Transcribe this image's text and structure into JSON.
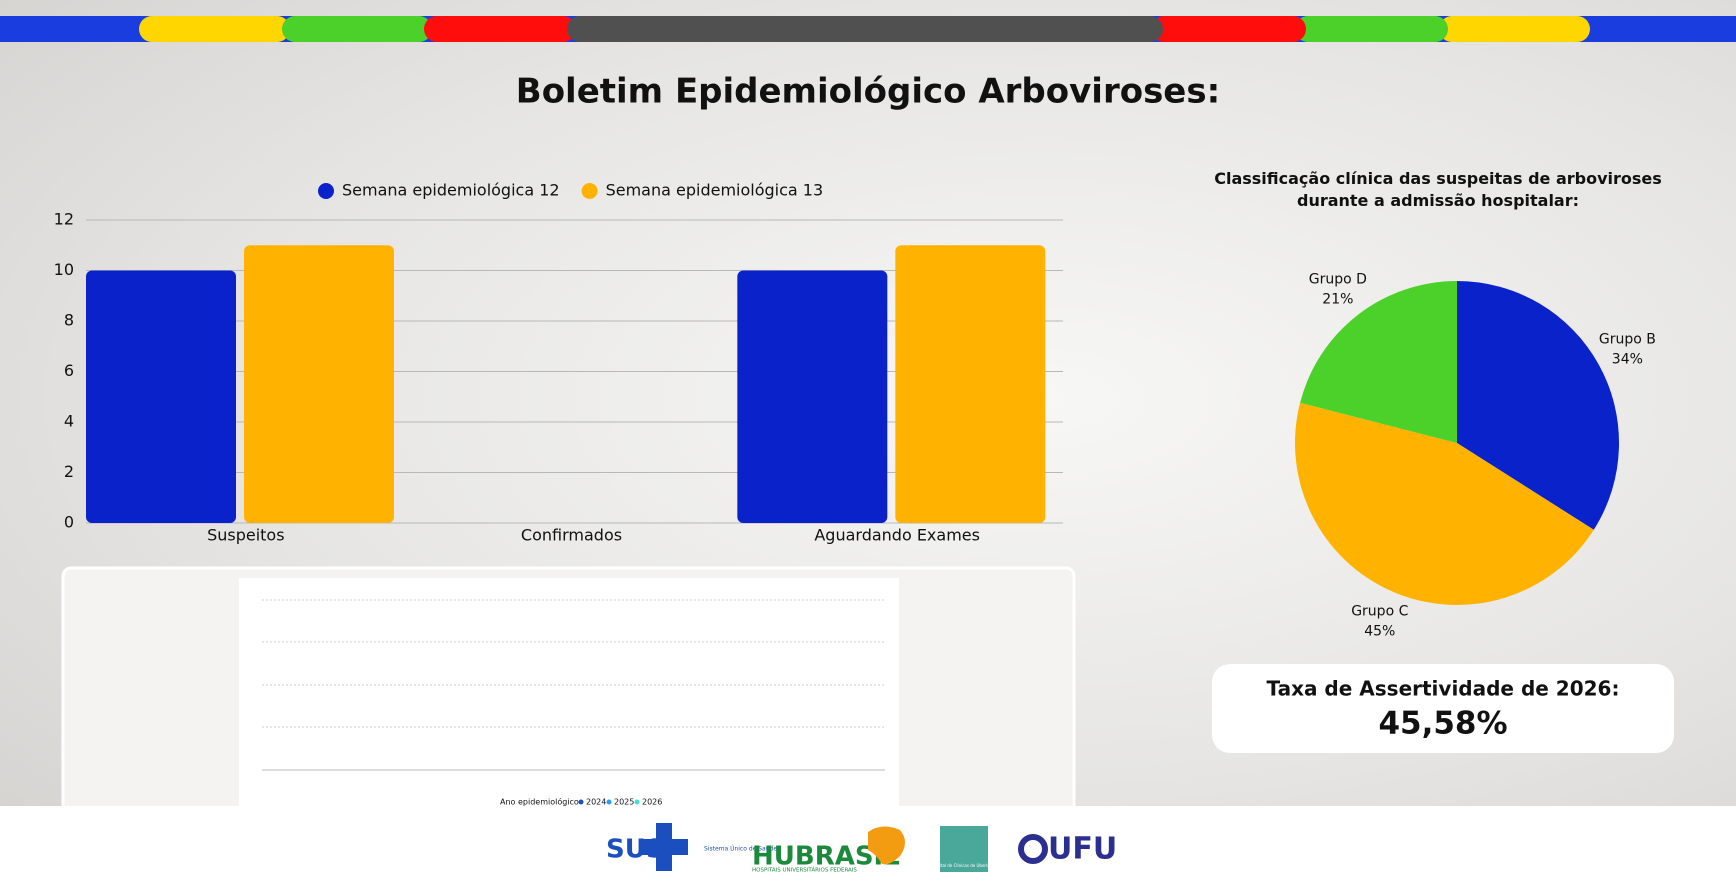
{
  "title": "Boletim Epidemiológico Arboviroses:",
  "chart_data": [
    {
      "type": "bar",
      "categories": [
        "Suspeitos",
        "Confirmados",
        "Aguardando Exames"
      ],
      "series": [
        {
          "name": "Semana epidemiológica 12",
          "color": "#0a22c9",
          "values": [
            10,
            0,
            10
          ]
        },
        {
          "name": "Semana epidemiológica 13",
          "color": "#ffb300",
          "values": [
            11,
            0,
            11
          ]
        }
      ],
      "ylim": [
        0,
        12
      ],
      "yticks": [
        0,
        2,
        4,
        6,
        8,
        10,
        12
      ],
      "grid": true,
      "legend": "top"
    },
    {
      "type": "pie",
      "title": "Classificação clínica das suspeitas de arboviroses durante a admissão hospitalar:",
      "categories": [
        "Grupo B",
        "Grupo C",
        "Grupo D"
      ],
      "values": [
        34,
        45,
        21
      ],
      "value_labels": [
        "34%",
        "45%",
        "21%"
      ],
      "colors": [
        "#0a22c9",
        "#ffb300",
        "#4cd02a"
      ]
    }
  ],
  "embedded_chart": {
    "legend_title": "Ano epidemiológico",
    "legend": [
      "2024",
      "2025",
      "2026"
    ]
  },
  "card": {
    "label": "Taxa de Assertividade de 2026:",
    "value": "45,58%"
  },
  "footer": {
    "sus": "SUS",
    "sus_sub": "Sistema Único de Saúde",
    "hubrasil": "HUBRASIL",
    "hubrasil_sub": "HOSPITAIS UNIVERSITÁRIOS FEDERAIS",
    "hc": "Hospital de Clínicas de Uberlândia",
    "ufu": "UFU"
  }
}
